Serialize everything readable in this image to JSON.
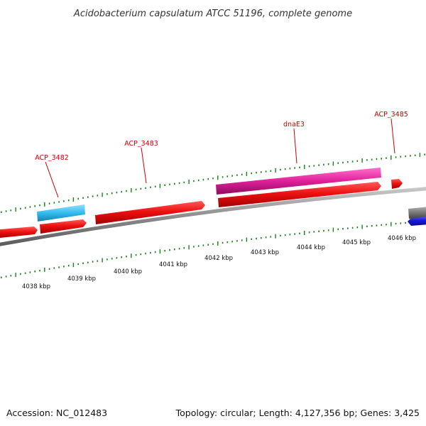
{
  "title": "Acidobacterium capsulatum ATCC 51196, complete genome",
  "accession": "Accession: NC_012483",
  "summary": "Topology: circular; Length: 4,127,356 bp; Genes: 3,425",
  "colors": {
    "backbone": "#8c8c8c",
    "tick": "#1a7f1a",
    "label": "#cc0000",
    "cds_red": "#ee1111",
    "cds_cyan": "#33bbee",
    "cds_magenta": "#e0209a",
    "cds_blue": "#1818e0",
    "cds_gray": "#777777"
  },
  "kbp_labels": [
    "4038 kbp",
    "4039 kbp",
    "4040 kbp",
    "4041 kbp",
    "4042 kbp",
    "4043 kbp",
    "4044 kbp",
    "4045 kbp",
    "4046 kbp"
  ],
  "gene_labels": [
    "ACP_3482",
    "ACP_3483",
    "dnaE3",
    "ACP_3485"
  ]
}
